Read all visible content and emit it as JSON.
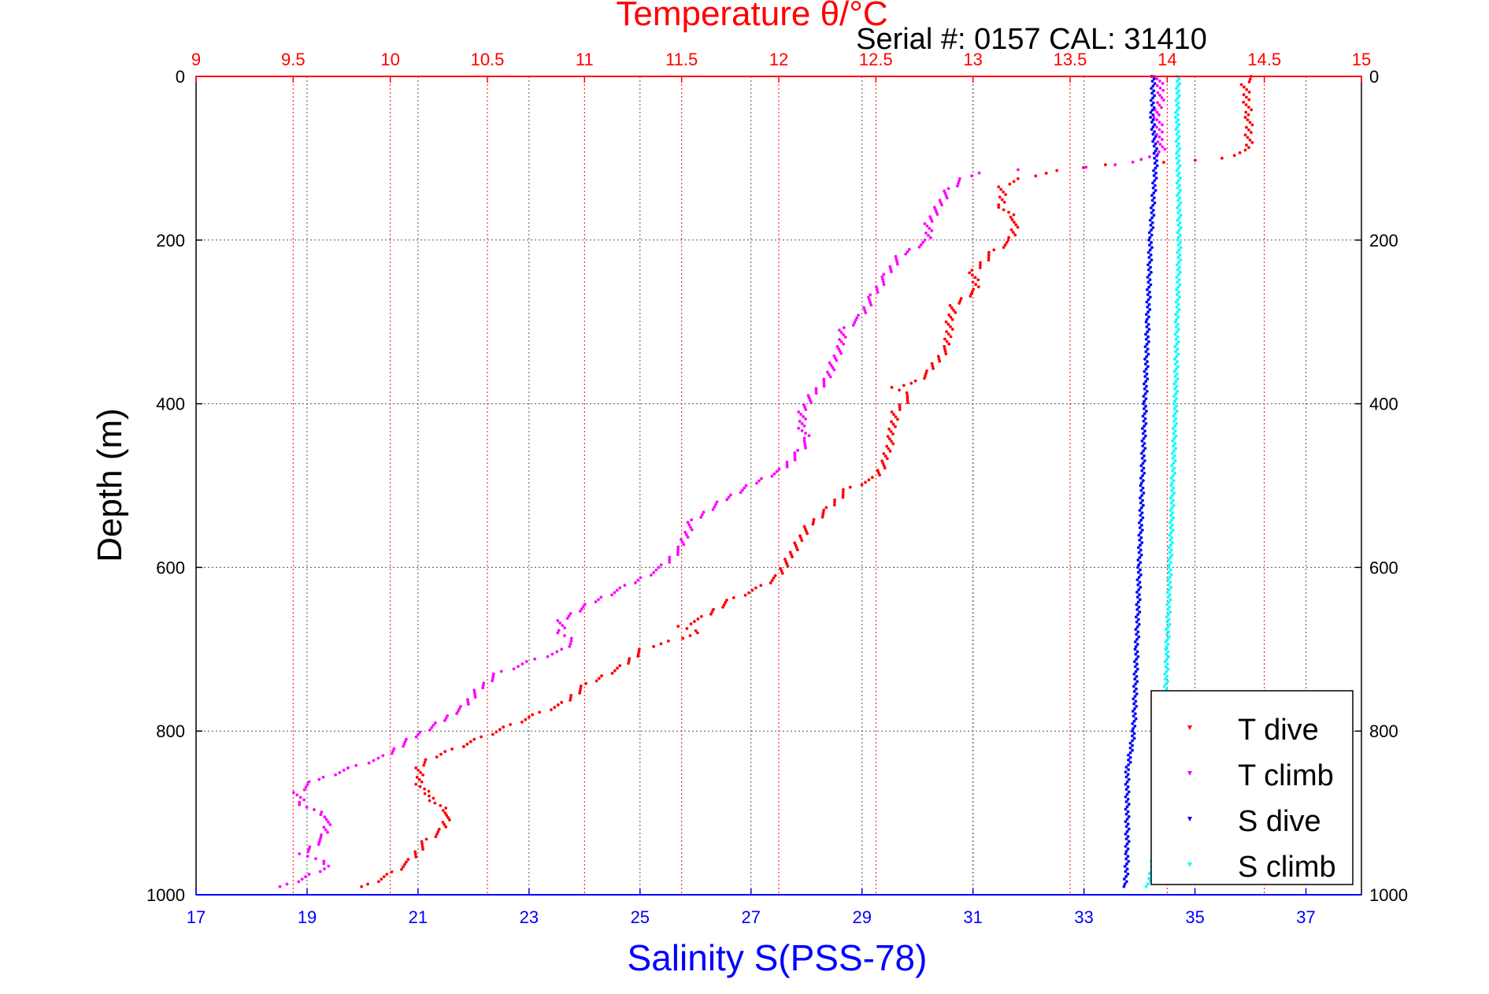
{
  "chart_data": {
    "type": "scatter",
    "title": "Temperature θ/°C",
    "subtitle": "Serial #: 0157  CAL: 31410",
    "ylabel": "Depth (m)",
    "xlabel_bottom": "Salinity S(PSS-78)",
    "xlabel_top": "Temperature θ/°C",
    "ylim": [
      0,
      1000
    ],
    "y_reversed": true,
    "xlim_temperature": [
      9,
      15
    ],
    "xlim_salinity": [
      17,
      38
    ],
    "grid": true,
    "legend_position": "bottom-right",
    "y_ticks": [
      "0",
      "200",
      "400",
      "600",
      "800",
      "1000"
    ],
    "y_tick_values": [
      0,
      200,
      400,
      600,
      800,
      1000
    ],
    "temperature_ticks": [
      "9",
      "9.5",
      "10",
      "10.5",
      "11",
      "11.5",
      "12",
      "12.5",
      "13",
      "13.5",
      "14",
      "14.5",
      "15"
    ],
    "temperature_tick_values": [
      9,
      9.5,
      10,
      10.5,
      11,
      11.5,
      12,
      12.5,
      13,
      13.5,
      14,
      14.5,
      15
    ],
    "salinity_ticks": [
      "17",
      "19",
      "21",
      "23",
      "25",
      "27",
      "29",
      "31",
      "33",
      "35",
      "37"
    ],
    "salinity_tick_values": [
      17,
      19,
      21,
      23,
      25,
      27,
      29,
      31,
      33,
      35,
      37
    ],
    "colors": {
      "temperature_axis": "#ff0000",
      "salinity_axis": "#0000ff",
      "t_dive": "#ff0000",
      "t_climb": "#ff00ff",
      "s_dive": "#0000ff",
      "s_climb": "#00ffff"
    },
    "series": [
      {
        "name": "T dive",
        "axis": "temperature",
        "color": "#ff0000",
        "points": [
          [
            14.45,
            0
          ],
          [
            14.4,
            10
          ],
          [
            14.42,
            50
          ],
          [
            14.42,
            90
          ],
          [
            14.3,
            100
          ],
          [
            14.0,
            105
          ],
          [
            13.7,
            108
          ],
          [
            13.45,
            115
          ],
          [
            13.25,
            125
          ],
          [
            13.15,
            135
          ],
          [
            13.15,
            160
          ],
          [
            13.22,
            175
          ],
          [
            13.2,
            200
          ],
          [
            13.1,
            215
          ],
          [
            13.0,
            240
          ],
          [
            13.02,
            260
          ],
          [
            12.9,
            280
          ],
          [
            12.88,
            300
          ],
          [
            12.87,
            330
          ],
          [
            12.78,
            360
          ],
          [
            12.7,
            375
          ],
          [
            12.6,
            380
          ],
          [
            12.68,
            390
          ],
          [
            12.6,
            410
          ],
          [
            12.58,
            440
          ],
          [
            12.55,
            470
          ],
          [
            12.5,
            490
          ],
          [
            12.35,
            505
          ],
          [
            12.25,
            530
          ],
          [
            12.15,
            550
          ],
          [
            12.1,
            570
          ],
          [
            12.05,
            590
          ],
          [
            12.0,
            610
          ],
          [
            11.9,
            625
          ],
          [
            11.75,
            640
          ],
          [
            11.62,
            660
          ],
          [
            11.5,
            672
          ],
          [
            11.6,
            680
          ],
          [
            11.45,
            690
          ],
          [
            11.3,
            700
          ],
          [
            11.2,
            720
          ],
          [
            11.0,
            745
          ],
          [
            10.9,
            765
          ],
          [
            10.75,
            780
          ],
          [
            10.6,
            795
          ],
          [
            10.45,
            810
          ],
          [
            10.3,
            825
          ],
          [
            10.2,
            835
          ],
          [
            10.15,
            845
          ],
          [
            10.15,
            865
          ],
          [
            10.22,
            885
          ],
          [
            10.3,
            900
          ],
          [
            10.27,
            920
          ],
          [
            10.18,
            935
          ],
          [
            10.1,
            960
          ],
          [
            10.0,
            975
          ],
          [
            9.87,
            990
          ]
        ]
      },
      {
        "name": "T climb",
        "axis": "temperature",
        "color": "#ff00ff",
        "points": [
          [
            13.95,
            0
          ],
          [
            13.97,
            20
          ],
          [
            13.95,
            50
          ],
          [
            13.97,
            80
          ],
          [
            13.97,
            95
          ],
          [
            13.75,
            108
          ],
          [
            13.6,
            111
          ],
          [
            13.25,
            114
          ],
          [
            13.05,
            118
          ],
          [
            12.95,
            125
          ],
          [
            12.87,
            140
          ],
          [
            12.82,
            160
          ],
          [
            12.77,
            180
          ],
          [
            12.77,
            200
          ],
          [
            12.62,
            220
          ],
          [
            12.55,
            245
          ],
          [
            12.48,
            270
          ],
          [
            12.42,
            295
          ],
          [
            12.33,
            310
          ],
          [
            12.32,
            330
          ],
          [
            12.28,
            350
          ],
          [
            12.25,
            370
          ],
          [
            12.17,
            390
          ],
          [
            12.12,
            410
          ],
          [
            12.12,
            430
          ],
          [
            12.15,
            445
          ],
          [
            12.1,
            460
          ],
          [
            12.02,
            480
          ],
          [
            11.85,
            500
          ],
          [
            11.7,
            520
          ],
          [
            11.55,
            545
          ],
          [
            11.5,
            575
          ],
          [
            11.4,
            600
          ],
          [
            11.2,
            625
          ],
          [
            11.02,
            645
          ],
          [
            10.88,
            665
          ],
          [
            10.88,
            680
          ],
          [
            10.95,
            690
          ],
          [
            10.9,
            700
          ],
          [
            10.72,
            715
          ],
          [
            10.55,
            730
          ],
          [
            10.45,
            750
          ],
          [
            10.38,
            770
          ],
          [
            10.25,
            790
          ],
          [
            10.1,
            810
          ],
          [
            9.98,
            830
          ],
          [
            9.8,
            845
          ],
          [
            9.6,
            862
          ],
          [
            9.52,
            875
          ],
          [
            9.55,
            890
          ],
          [
            9.68,
            905
          ],
          [
            9.66,
            930
          ],
          [
            9.55,
            950
          ],
          [
            9.7,
            965
          ],
          [
            9.6,
            975
          ],
          [
            9.45,
            990
          ]
        ]
      },
      {
        "name": "S dive",
        "axis": "salinity",
        "color": "#0000ff",
        "points": [
          [
            34.25,
            0
          ],
          [
            34.23,
            50
          ],
          [
            34.3,
            100
          ],
          [
            34.2,
            200
          ],
          [
            34.15,
            300
          ],
          [
            34.1,
            400
          ],
          [
            34.05,
            500
          ],
          [
            34.0,
            600
          ],
          [
            33.95,
            700
          ],
          [
            33.9,
            800
          ],
          [
            33.78,
            850
          ],
          [
            33.78,
            950
          ],
          [
            33.75,
            990
          ]
        ]
      },
      {
        "name": "S climb",
        "axis": "salinity",
        "color": "#00ffff",
        "points": [
          [
            34.7,
            0
          ],
          [
            34.68,
            50
          ],
          [
            34.7,
            100
          ],
          [
            34.72,
            200
          ],
          [
            34.68,
            300
          ],
          [
            34.65,
            400
          ],
          [
            34.6,
            500
          ],
          [
            34.55,
            600
          ],
          [
            34.5,
            700
          ],
          [
            34.45,
            800
          ],
          [
            34.35,
            900
          ],
          [
            34.2,
            980
          ],
          [
            34.15,
            990
          ]
        ]
      }
    ],
    "legend": [
      "T dive",
      "T climb",
      "S dive",
      "S climb"
    ]
  }
}
